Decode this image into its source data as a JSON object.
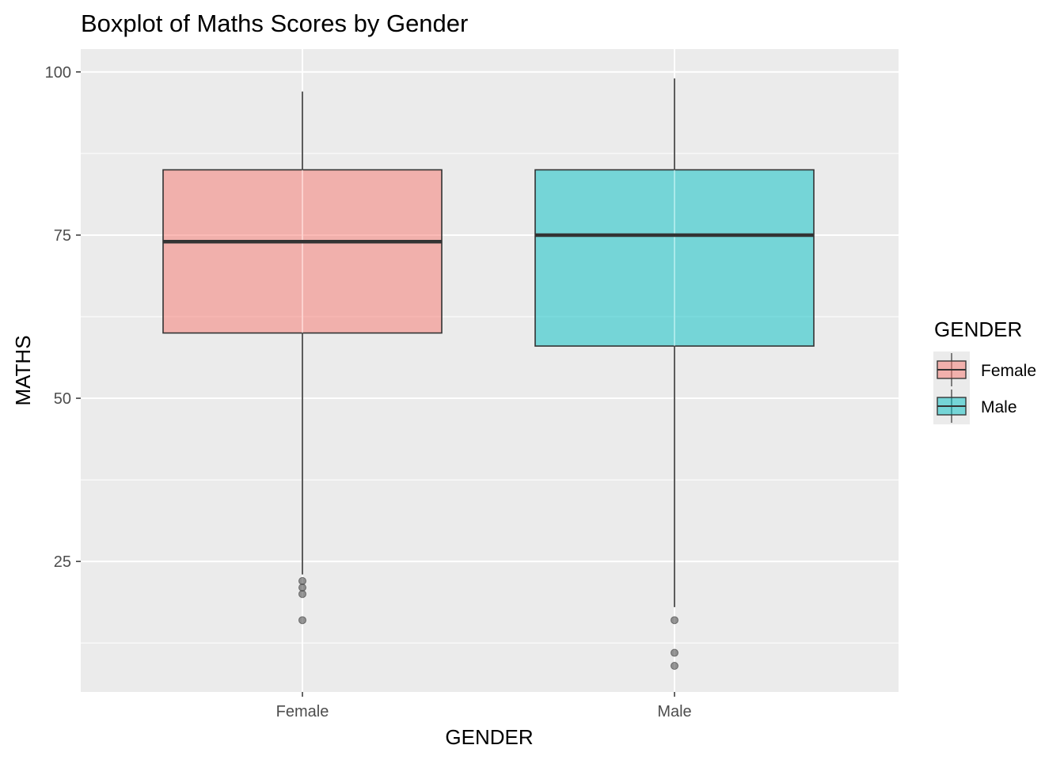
{
  "chart_data": {
    "type": "boxplot",
    "title": "Boxplot of Maths Scores by Gender",
    "xlabel": "GENDER",
    "ylabel": "MATHS",
    "ylim": [
      5,
      103.5
    ],
    "y_ticks": [
      25,
      50,
      75,
      100
    ],
    "y_minor_ticks": [
      12.5,
      37.5,
      62.5,
      87.5
    ],
    "grid": true,
    "categories": [
      "Female",
      "Male"
    ],
    "series": [
      {
        "name": "Female",
        "color": "#F8766D",
        "whisker_low": 23,
        "q1": 60,
        "median": 74,
        "q3": 85,
        "whisker_high": 97,
        "outliers": [
          22,
          21,
          20,
          16
        ]
      },
      {
        "name": "Male",
        "color": "#00BFC4",
        "whisker_low": 18,
        "q1": 58,
        "median": 75,
        "q3": 85,
        "whisker_high": 99,
        "outliers": [
          16,
          11,
          9
        ]
      }
    ],
    "legend": {
      "title": "GENDER",
      "position": "right",
      "entries": [
        "Female",
        "Male"
      ]
    }
  }
}
